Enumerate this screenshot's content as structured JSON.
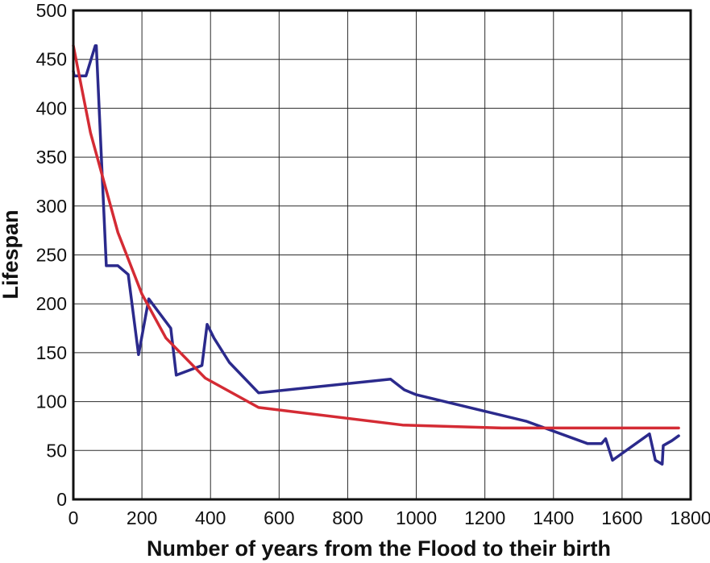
{
  "chart_data": {
    "type": "line",
    "title": "",
    "xlabel": "Number of years from the Flood to their birth",
    "ylabel": "Lifespan",
    "xlim": [
      0,
      1800
    ],
    "ylim": [
      0,
      500
    ],
    "xticks": [
      0,
      200,
      400,
      600,
      800,
      1000,
      1200,
      1400,
      1600,
      1800
    ],
    "yticks": [
      0,
      50,
      100,
      150,
      200,
      250,
      300,
      350,
      400,
      450,
      500
    ],
    "grid": true,
    "legend": "none",
    "series": [
      {
        "color": "#2b2a8c",
        "points": [
          [
            0,
            438
          ],
          [
            2,
            433
          ],
          [
            35,
            433
          ],
          [
            37,
            433
          ],
          [
            64,
            464
          ],
          [
            67,
            464
          ],
          [
            96,
            239
          ],
          [
            126,
            239
          ],
          [
            130,
            239
          ],
          [
            160,
            230
          ],
          [
            190,
            148
          ],
          [
            220,
            205
          ],
          [
            284,
            175
          ],
          [
            300,
            127
          ],
          [
            375,
            137
          ],
          [
            390,
            179
          ],
          [
            410,
            165
          ],
          [
            455,
            140
          ],
          [
            540,
            109
          ],
          [
            925,
            123
          ],
          [
            965,
            112
          ],
          [
            1000,
            107
          ],
          [
            1320,
            80
          ],
          [
            1500,
            57
          ],
          [
            1540,
            57
          ],
          [
            1552,
            62
          ],
          [
            1572,
            40
          ],
          [
            1680,
            67
          ],
          [
            1697,
            40
          ],
          [
            1717,
            36
          ],
          [
            1720,
            55
          ],
          [
            1745,
            60
          ],
          [
            1765,
            65
          ]
        ]
      },
      {
        "color": "#d42b34",
        "points": [
          [
            0,
            464
          ],
          [
            50,
            375
          ],
          [
            130,
            273
          ],
          [
            200,
            210
          ],
          [
            270,
            165
          ],
          [
            385,
            124
          ],
          [
            540,
            94
          ],
          [
            960,
            76
          ],
          [
            1250,
            73
          ],
          [
            1765,
            73
          ]
        ]
      }
    ]
  }
}
